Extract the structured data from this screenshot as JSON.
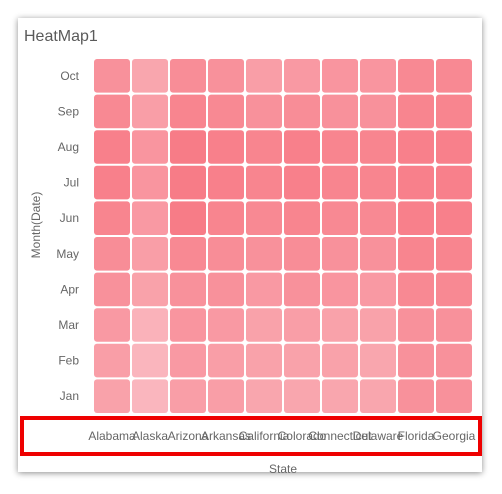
{
  "chart_data": {
    "type": "heatmap",
    "title": "HeatMap1",
    "xlabel": "State",
    "ylabel": "Month(Date)",
    "x": [
      "Alabama",
      "Alaska",
      "Arizona",
      "Arkansas",
      "California",
      "Colorado",
      "Connecticut",
      "Delaware",
      "Florida",
      "Georgia"
    ],
    "y": [
      "Jan",
      "Feb",
      "Mar",
      "Apr",
      "May",
      "Jun",
      "Jul",
      "Aug",
      "Sep",
      "Oct"
    ],
    "values": [
      [
        0.45,
        0.2,
        0.5,
        0.5,
        0.4,
        0.4,
        0.4,
        0.4,
        0.65,
        0.65
      ],
      [
        0.5,
        0.22,
        0.55,
        0.5,
        0.45,
        0.45,
        0.45,
        0.4,
        0.65,
        0.65
      ],
      [
        0.55,
        0.25,
        0.6,
        0.55,
        0.45,
        0.5,
        0.45,
        0.45,
        0.65,
        0.65
      ],
      [
        0.65,
        0.45,
        0.65,
        0.65,
        0.55,
        0.65,
        0.6,
        0.55,
        0.75,
        0.75
      ],
      [
        0.7,
        0.5,
        0.75,
        0.7,
        0.65,
        0.7,
        0.65,
        0.65,
        0.8,
        0.8
      ],
      [
        0.8,
        0.55,
        0.9,
        0.8,
        0.75,
        0.8,
        0.75,
        0.75,
        0.85,
        0.85
      ],
      [
        0.85,
        0.6,
        0.9,
        0.85,
        0.8,
        0.85,
        0.8,
        0.8,
        0.85,
        0.85
      ],
      [
        0.85,
        0.6,
        0.9,
        0.85,
        0.8,
        0.85,
        0.8,
        0.8,
        0.85,
        0.85
      ],
      [
        0.75,
        0.5,
        0.8,
        0.75,
        0.65,
        0.7,
        0.65,
        0.65,
        0.8,
        0.8
      ],
      [
        0.65,
        0.4,
        0.7,
        0.65,
        0.5,
        0.55,
        0.6,
        0.6,
        0.75,
        0.75
      ]
    ],
    "color_low": "#fbc7ce",
    "color_high": "#f7747f",
    "grid": false,
    "legend": "none"
  }
}
